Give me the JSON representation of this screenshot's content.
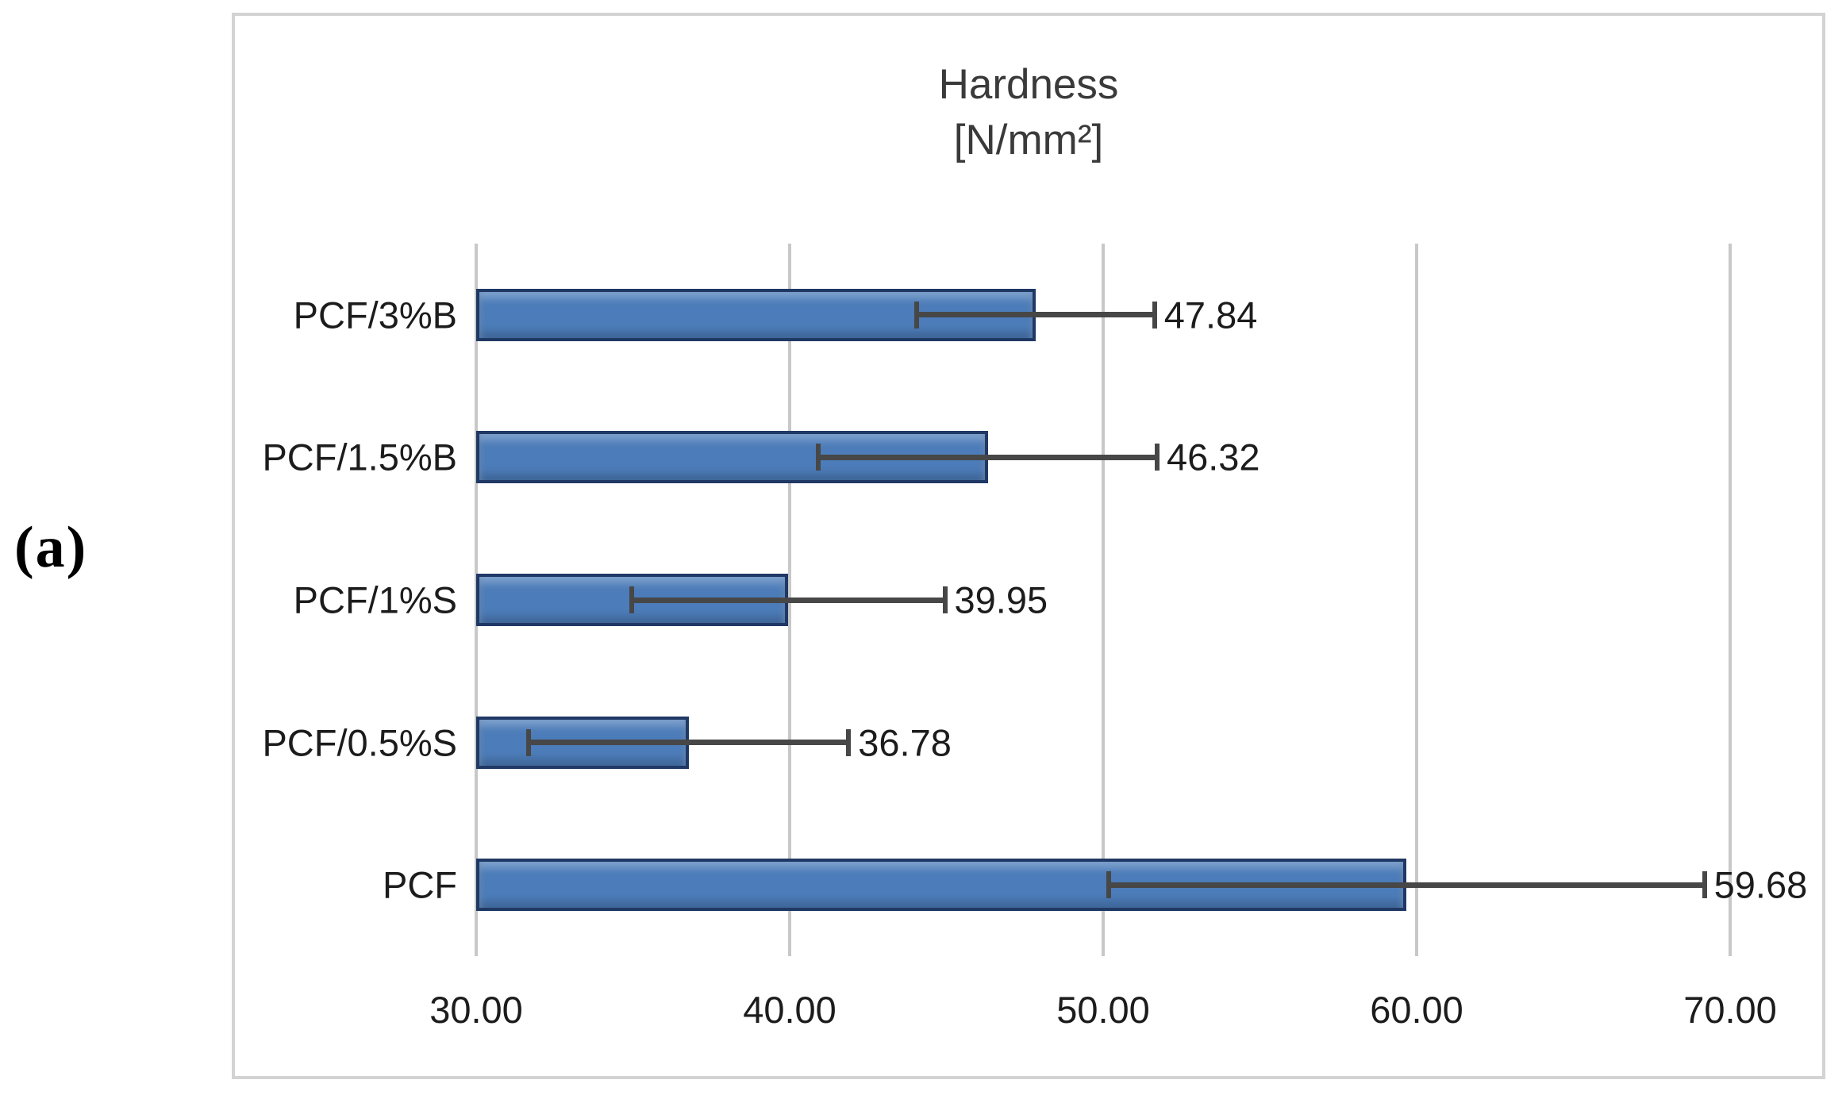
{
  "panel_label": "(a)",
  "colors": {
    "bar_fill": "#4c7cb9",
    "bar_border": "#1f3864",
    "error_bar": "#474747",
    "gridline": "#c8c8c8",
    "frame_border": "#d3d3d3",
    "text": "#1c1c1c"
  },
  "chart_data": {
    "type": "bar",
    "orientation": "horizontal",
    "title": "Hardness",
    "title_units": "[N/mm²]",
    "categories": [
      "PCF/3%B",
      "PCF/1.5%B",
      "PCF/1%S",
      "PCF/0.5%S",
      "PCF"
    ],
    "values": [
      47.84,
      46.32,
      39.95,
      36.78,
      59.68
    ],
    "value_labels": [
      "47.84",
      "46.32",
      "39.95",
      "36.78",
      "59.68"
    ],
    "errors": [
      3.8,
      5.4,
      5.0,
      5.1,
      9.5
    ],
    "xlim": [
      30,
      70
    ],
    "xticks": [
      30,
      40,
      50,
      60,
      70
    ],
    "xtick_labels": [
      "30.00",
      "40.00",
      "50.00",
      "60.00",
      "70.00"
    ],
    "grid": true,
    "legend": "none",
    "bar_start": 30
  }
}
